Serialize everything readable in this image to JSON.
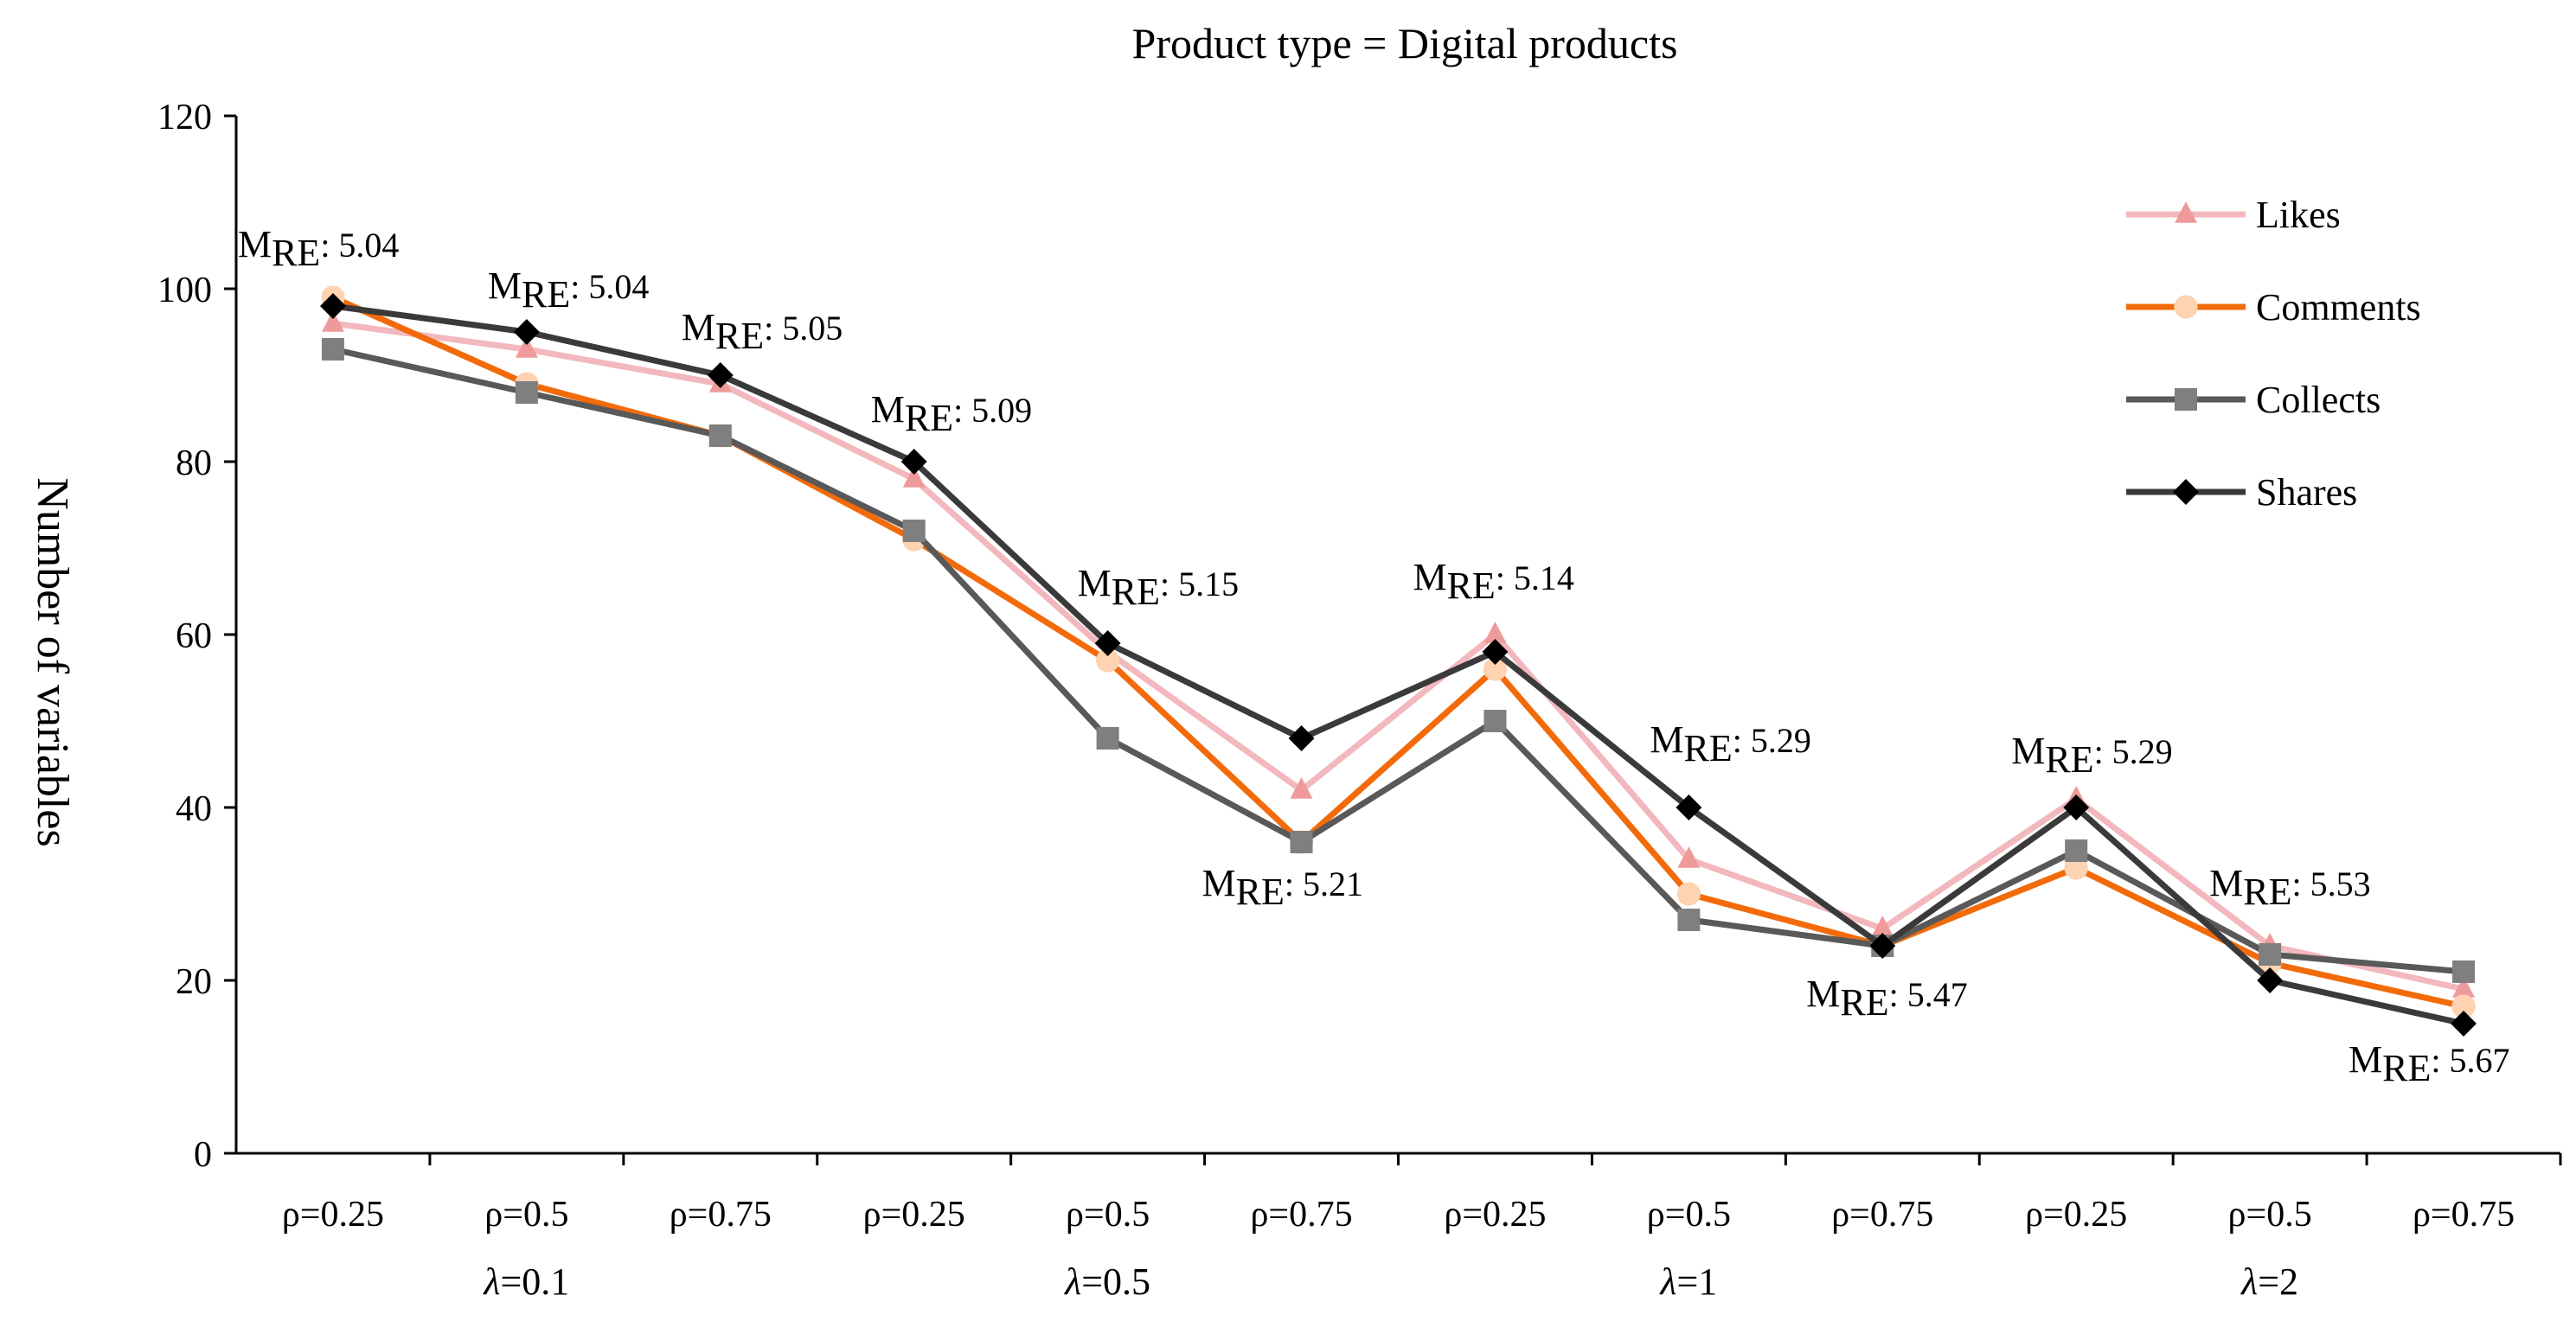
{
  "chart_data": {
    "type": "line",
    "title": "Product type = Digital products",
    "xlabel": "",
    "ylabel": "Number of variables",
    "ylim": [
      0,
      120
    ],
    "yticks": [
      0,
      20,
      40,
      60,
      80,
      100,
      120
    ],
    "categories": [
      "ρ=0.25",
      "ρ=0.5",
      "ρ=0.75",
      "ρ=0.25",
      "ρ=0.5",
      "ρ=0.75",
      "ρ=0.25",
      "ρ=0.5",
      "ρ=0.75",
      "ρ=0.25",
      "ρ=0.5",
      "ρ=0.75"
    ],
    "groups": [
      {
        "label": "λ=0.1",
        "symbol": "λ",
        "value": "=0.1"
      },
      {
        "label": "λ=0.5",
        "symbol": "λ",
        "value": "=0.5"
      },
      {
        "label": "λ=1",
        "symbol": "λ",
        "value": "=1"
      },
      {
        "label": "λ=2",
        "symbol": "λ",
        "value": "=2"
      }
    ],
    "grid": false,
    "legend_position": "top-right",
    "series": [
      {
        "name": "Likes",
        "color": "#f2b8bd",
        "marker": "triangle",
        "marker_color": "#ef9a9a",
        "values": [
          96,
          93,
          89,
          78,
          58,
          42,
          60,
          34,
          26,
          41,
          24,
          19
        ]
      },
      {
        "name": "Comments",
        "color": "#f26a0a",
        "marker": "circle",
        "marker_color": "#fdd3b2",
        "values": [
          99,
          89,
          83,
          71,
          57,
          36,
          56,
          30,
          24,
          33,
          22,
          17
        ]
      },
      {
        "name": "Collects",
        "color": "#595959",
        "marker": "square",
        "marker_color": "#7f7f7f",
        "values": [
          93,
          88,
          83,
          72,
          48,
          36,
          50,
          27,
          24,
          35,
          23,
          21
        ]
      },
      {
        "name": "Shares",
        "color": "#3a3a3a",
        "marker": "diamond",
        "marker_color": "#000000",
        "values": [
          98,
          95,
          90,
          80,
          59,
          48,
          58,
          40,
          24,
          40,
          20,
          15
        ]
      }
    ],
    "annotations": [
      {
        "main": "M",
        "sub": "RE",
        "text": ": 5.04",
        "category_index": 0
      },
      {
        "main": "M",
        "sub": "RE",
        "text": ": 5.04",
        "category_index": 1
      },
      {
        "main": "M",
        "sub": "RE",
        "text": ": 5.05",
        "category_index": 2
      },
      {
        "main": "M",
        "sub": "RE",
        "text": ": 5.09",
        "category_index": 3
      },
      {
        "main": "M",
        "sub": "RE",
        "text": ":  5.15",
        "category_index": 4
      },
      {
        "main": "M",
        "sub": "RE",
        "text": ": 5.21",
        "category_index": 5
      },
      {
        "main": "M",
        "sub": "RE",
        "text": ": 5.14",
        "category_index": 6
      },
      {
        "main": "M",
        "sub": "RE",
        "text": ": 5.29",
        "category_index": 7
      },
      {
        "main": "M",
        "sub": "RE",
        "text": ": 5.47",
        "category_index": 8
      },
      {
        "main": "M",
        "sub": "RE",
        "text": ": 5.29",
        "category_index": 9
      },
      {
        "main": "M",
        "sub": "RE",
        "text": ": 5.53",
        "category_index": 10
      },
      {
        "main": "M",
        "sub": "RE",
        "text": ": 5.67",
        "category_index": 11
      }
    ]
  }
}
